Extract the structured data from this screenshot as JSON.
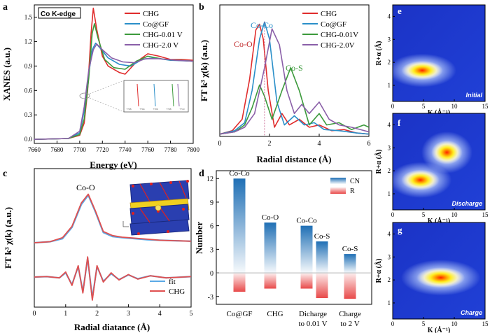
{
  "chart_data": [
    {
      "panel": "a",
      "type": "line",
      "label_box": "Co K-edge",
      "xlabel": "Energy (eV)",
      "ylabel": "XANES (a.u.)",
      "xlim": [
        7660,
        7800
      ],
      "ylim": [
        -0.05,
        1.65
      ],
      "xticks": [
        7660,
        7680,
        7700,
        7720,
        7740,
        7760,
        7780,
        7800
      ],
      "yticks": [
        0.0,
        0.3,
        0.6,
        0.9,
        1.2,
        1.5
      ],
      "series": [
        {
          "name": "CHG",
          "color": "#e02c2c",
          "points": [
            [
              7660,
              0.0
            ],
            [
              7690,
              0.01
            ],
            [
              7700,
              0.05
            ],
            [
              7704,
              0.2
            ],
            [
              7707,
              0.6
            ],
            [
              7710,
              1.3
            ],
            [
              7712,
              1.61
            ],
            [
              7715,
              1.35
            ],
            [
              7720,
              1.02
            ],
            [
              7725,
              0.9
            ],
            [
              7735,
              0.82
            ],
            [
              7740,
              0.8
            ],
            [
              7750,
              0.95
            ],
            [
              7760,
              1.05
            ],
            [
              7770,
              1.02
            ],
            [
              7780,
              0.98
            ],
            [
              7790,
              0.98
            ],
            [
              7800,
              0.97
            ]
          ]
        },
        {
          "name": "Co@GF",
          "color": "#2a8fc9",
          "points": [
            [
              7660,
              0.0
            ],
            [
              7690,
              0.01
            ],
            [
              7700,
              0.08
            ],
            [
              7704,
              0.35
            ],
            [
              7708,
              0.8
            ],
            [
              7711,
              1.1
            ],
            [
              7714,
              1.18
            ],
            [
              7718,
              1.12
            ],
            [
              7725,
              1.0
            ],
            [
              7735,
              0.92
            ],
            [
              7745,
              0.9
            ],
            [
              7755,
              0.98
            ],
            [
              7765,
              1.0
            ],
            [
              7780,
              0.97
            ],
            [
              7800,
              0.96
            ]
          ]
        },
        {
          "name": "CHG-0.01 V",
          "color": "#3c9a3c",
          "points": [
            [
              7660,
              0.0
            ],
            [
              7690,
              0.01
            ],
            [
              7700,
              0.06
            ],
            [
              7704,
              0.25
            ],
            [
              7708,
              0.75
            ],
            [
              7711,
              1.3
            ],
            [
              7713,
              1.42
            ],
            [
              7716,
              1.25
            ],
            [
              7722,
              0.98
            ],
            [
              7730,
              0.88
            ],
            [
              7740,
              0.86
            ],
            [
              7750,
              0.96
            ],
            [
              7760,
              1.02
            ],
            [
              7775,
              0.98
            ],
            [
              7800,
              0.96
            ]
          ]
        },
        {
          "name": "CHG-2.0 V",
          "color": "#8a5fa8",
          "points": [
            [
              7660,
              0.0
            ],
            [
              7690,
              0.01
            ],
            [
              7700,
              0.1
            ],
            [
              7704,
              0.4
            ],
            [
              7708,
              0.85
            ],
            [
              7712,
              1.1
            ],
            [
              7715,
              1.17
            ],
            [
              7720,
              1.1
            ],
            [
              7728,
              1.0
            ],
            [
              7738,
              0.95
            ],
            [
              7748,
              0.94
            ],
            [
              7758,
              0.99
            ],
            [
              7770,
              0.99
            ],
            [
              7785,
              0.97
            ],
            [
              7800,
              0.96
            ]
          ]
        }
      ],
      "inset_ticks": [
        "7708",
        "7704",
        "7706",
        "7708",
        "7710"
      ]
    },
    {
      "panel": "b",
      "type": "line",
      "xlabel": "Radial distance (Å)",
      "ylabel": "FT k³ χ(k) (a.u.)",
      "xlim": [
        0,
        6
      ],
      "xticks": [
        0,
        2,
        4,
        6
      ],
      "annotations": [
        "Co-O",
        "Co-Co",
        "Co-S"
      ],
      "series": [
        {
          "name": "CHG",
          "color": "#e02c2c",
          "points": [
            [
              0,
              0.02
            ],
            [
              0.5,
              0.05
            ],
            [
              0.9,
              0.15
            ],
            [
              1.2,
              0.5
            ],
            [
              1.45,
              0.93
            ],
            [
              1.6,
              0.98
            ],
            [
              1.75,
              0.85
            ],
            [
              1.95,
              0.4
            ],
            [
              2.2,
              0.08
            ],
            [
              2.5,
              0.2
            ],
            [
              2.8,
              0.1
            ],
            [
              3.2,
              0.15
            ],
            [
              3.6,
              0.08
            ],
            [
              4.0,
              0.1
            ],
            [
              4.5,
              0.05
            ],
            [
              5.0,
              0.06
            ],
            [
              5.5,
              0.03
            ],
            [
              6,
              0.02
            ]
          ]
        },
        {
          "name": "Co@GF",
          "color": "#2a8fc9",
          "points": [
            [
              0,
              0.02
            ],
            [
              0.6,
              0.05
            ],
            [
              1.0,
              0.12
            ],
            [
              1.3,
              0.4
            ],
            [
              1.6,
              0.85
            ],
            [
              1.8,
              1.0
            ],
            [
              2.0,
              0.85
            ],
            [
              2.3,
              0.3
            ],
            [
              2.6,
              0.1
            ],
            [
              3.0,
              0.18
            ],
            [
              3.4,
              0.1
            ],
            [
              3.8,
              0.12
            ],
            [
              4.2,
              0.06
            ],
            [
              4.8,
              0.05
            ],
            [
              5.5,
              0.03
            ],
            [
              6,
              0.02
            ]
          ]
        },
        {
          "name": "CHG-0.01V",
          "color": "#3c9a3c",
          "points": [
            [
              0,
              0.02
            ],
            [
              0.6,
              0.04
            ],
            [
              1.0,
              0.1
            ],
            [
              1.3,
              0.25
            ],
            [
              1.6,
              0.45
            ],
            [
              1.8,
              0.35
            ],
            [
              2.1,
              0.15
            ],
            [
              2.5,
              0.4
            ],
            [
              2.85,
              0.6
            ],
            [
              3.2,
              0.4
            ],
            [
              3.6,
              0.1
            ],
            [
              4.0,
              0.2
            ],
            [
              4.3,
              0.1
            ],
            [
              4.8,
              0.12
            ],
            [
              5.3,
              0.06
            ],
            [
              5.8,
              0.1
            ],
            [
              6,
              0.08
            ]
          ]
        },
        {
          "name": "CHG-2.0V",
          "color": "#8a5fa8",
          "points": [
            [
              0,
              0.02
            ],
            [
              0.6,
              0.04
            ],
            [
              1.0,
              0.08
            ],
            [
              1.4,
              0.2
            ],
            [
              1.8,
              0.6
            ],
            [
              2.1,
              0.94
            ],
            [
              2.4,
              0.8
            ],
            [
              2.7,
              0.4
            ],
            [
              3.0,
              0.2
            ],
            [
              3.3,
              0.28
            ],
            [
              3.6,
              0.2
            ],
            [
              4.0,
              0.3
            ],
            [
              4.4,
              0.15
            ],
            [
              4.8,
              0.1
            ],
            [
              5.3,
              0.08
            ],
            [
              6,
              0.04
            ]
          ]
        }
      ]
    },
    {
      "panel": "c",
      "type": "line",
      "xlabel": "Radial diatance (Å)",
      "ylabel": "FT k³ χ(k) (a.u.)",
      "xlim": [
        0,
        5
      ],
      "xticks": [
        0,
        1,
        2,
        3,
        4,
        5
      ],
      "annotations": [
        "Co-O"
      ],
      "series": [
        {
          "name": "fit",
          "color": "#5aa9e6",
          "magnitude": [
            [
              0,
              0.0
            ],
            [
              0.5,
              0.02
            ],
            [
              0.9,
              0.08
            ],
            [
              1.2,
              0.3
            ],
            [
              1.5,
              0.75
            ],
            [
              1.72,
              0.93
            ],
            [
              1.95,
              0.6
            ],
            [
              2.2,
              0.2
            ],
            [
              2.5,
              0.12
            ],
            [
              2.8,
              0.1
            ],
            [
              3.2,
              0.08
            ],
            [
              3.6,
              0.06
            ],
            [
              4.0,
              0.05
            ],
            [
              4.5,
              0.04
            ],
            [
              5,
              0.03
            ]
          ],
          "real": [
            [
              0,
              0
            ],
            [
              0.4,
              0.01
            ],
            [
              0.8,
              -0.02
            ],
            [
              1.0,
              0.1
            ],
            [
              1.2,
              -0.18
            ],
            [
              1.4,
              0.25
            ],
            [
              1.55,
              -0.35
            ],
            [
              1.7,
              0.45
            ],
            [
              1.85,
              -0.5
            ],
            [
              2.0,
              0.25
            ],
            [
              2.2,
              -0.1
            ],
            [
              2.45,
              0.08
            ],
            [
              2.7,
              -0.06
            ],
            [
              3.0,
              0.05
            ],
            [
              3.3,
              -0.04
            ],
            [
              3.7,
              0.03
            ],
            [
              4.2,
              -0.02
            ],
            [
              5,
              0.01
            ]
          ]
        },
        {
          "name": "CHG",
          "color": "#e05050",
          "magnitude": [
            [
              0,
              0.0
            ],
            [
              0.5,
              0.02
            ],
            [
              0.9,
              0.1
            ],
            [
              1.2,
              0.32
            ],
            [
              1.5,
              0.78
            ],
            [
              1.72,
              0.95
            ],
            [
              1.95,
              0.62
            ],
            [
              2.2,
              0.22
            ],
            [
              2.5,
              0.14
            ],
            [
              2.8,
              0.11
            ],
            [
              3.2,
              0.09
            ],
            [
              3.6,
              0.07
            ],
            [
              4.0,
              0.05
            ],
            [
              4.5,
              0.04
            ],
            [
              5,
              0.03
            ]
          ],
          "real": [
            [
              0,
              0
            ],
            [
              0.4,
              0.01
            ],
            [
              0.8,
              -0.02
            ],
            [
              1.0,
              0.12
            ],
            [
              1.2,
              -0.2
            ],
            [
              1.4,
              0.27
            ],
            [
              1.55,
              -0.38
            ],
            [
              1.7,
              0.48
            ],
            [
              1.85,
              -0.55
            ],
            [
              2.0,
              0.27
            ],
            [
              2.2,
              -0.12
            ],
            [
              2.45,
              0.1
            ],
            [
              2.7,
              -0.07
            ],
            [
              3.0,
              0.06
            ],
            [
              3.3,
              -0.05
            ],
            [
              3.7,
              0.03
            ],
            [
              4.2,
              -0.02
            ],
            [
              5,
              0.01
            ]
          ]
        }
      ]
    },
    {
      "panel": "d",
      "type": "bar",
      "ylabel": "Number",
      "categories": [
        "Co@GF",
        "CHG",
        "Dicharge\nto 0.01 V",
        "Charge\nto 2 V"
      ],
      "ylim": [
        -4,
        13
      ],
      "yticks": [
        -3,
        0,
        3,
        6,
        9,
        12
      ],
      "legend": [
        "CN",
        "R"
      ],
      "bars": [
        {
          "category": 0,
          "label": "Co-Co",
          "CN": 12.0,
          "R": -2.4
        },
        {
          "category": 1,
          "label": "Co-O",
          "CN": 6.4,
          "R": -2.0
        },
        {
          "category": 2,
          "label": "Co-Co",
          "CN": 6.0,
          "R": -2.0
        },
        {
          "category": 2,
          "label": "Co-S",
          "CN": 4.0,
          "R": -3.2
        },
        {
          "category": 3,
          "label": "Co-S",
          "CN": 2.4,
          "R": -3.3
        }
      ],
      "colors": {
        "CN": "#1f6fb5",
        "R": "#e84a4a"
      }
    },
    {
      "panel": "e",
      "type": "heatmap",
      "xlabel": "K (Å⁻¹)",
      "ylabel": "R+α (Å)",
      "xticks": [
        0,
        5,
        10,
        15
      ],
      "yticks": [
        1,
        2,
        3,
        4
      ],
      "corner_label": "Initial",
      "blobs": [
        {
          "k": 4.8,
          "r": 1.65,
          "sk": 2.4,
          "sr": 0.28
        }
      ]
    },
    {
      "panel": "f",
      "type": "heatmap",
      "xlabel": "K (Å⁻¹)",
      "ylabel": "R+α (Å)",
      "xticks": [
        0,
        5,
        10,
        15
      ],
      "yticks": [
        1,
        2,
        3,
        4
      ],
      "corner_label": "Discharge",
      "blobs": [
        {
          "k": 4.5,
          "r": 1.6,
          "sk": 2.2,
          "sr": 0.3
        },
        {
          "k": 8.8,
          "r": 2.8,
          "sk": 1.8,
          "sr": 0.35
        }
      ]
    },
    {
      "panel": "g",
      "type": "heatmap",
      "xlabel": "K (Å⁻¹)",
      "ylabel": "R+α (Å)",
      "xticks": [
        0,
        5,
        10,
        15
      ],
      "yticks": [
        1,
        2,
        3,
        4
      ],
      "corner_label": "Charge",
      "blobs": [
        {
          "k": 7.8,
          "r": 2.1,
          "sk": 2.8,
          "sr": 0.3
        }
      ]
    }
  ],
  "panel_labels": [
    "a",
    "b",
    "c",
    "d",
    "e",
    "f",
    "g"
  ]
}
